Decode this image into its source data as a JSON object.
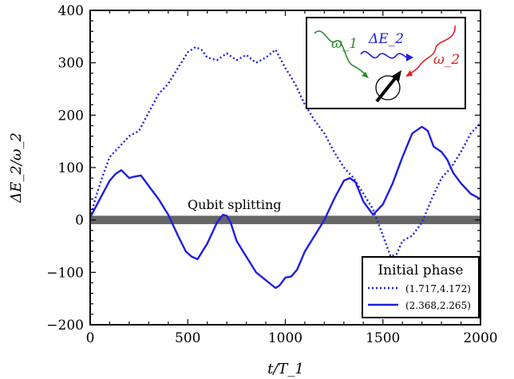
{
  "chart_data": {
    "type": "line",
    "xlabel": "t/T_1",
    "ylabel": "ΔE_2/ω_2",
    "xlim": [
      0,
      2000
    ],
    "ylim": [
      -200,
      400
    ],
    "xticks": [
      0,
      500,
      1000,
      1500,
      2000
    ],
    "xtick_labels": [
      "0",
      "500",
      "1000",
      "1500",
      "2000"
    ],
    "yticks": [
      -200,
      -100,
      0,
      100,
      200,
      300,
      400
    ],
    "ytick_labels": [
      "−200",
      "−100",
      "0",
      "100",
      "200",
      "300",
      "400"
    ],
    "grid": false,
    "band": {
      "label": "Qubit splitting",
      "y_range": [
        -8,
        8
      ],
      "color": "#666666"
    },
    "legend": {
      "title": "Initial phase",
      "position": "lower right"
    },
    "inset": {
      "labels": [
        "ω_1",
        "ΔE_2",
        "ω_2"
      ],
      "position": "upper right"
    },
    "series": [
      {
        "name": "(1.717,4.172)",
        "style": "dotted",
        "color": "#1f1fe0",
        "x": [
          0,
          30,
          60,
          100,
          150,
          200,
          250,
          300,
          350,
          400,
          450,
          500,
          540,
          570,
          600,
          650,
          700,
          750,
          800,
          850,
          900,
          950,
          1000,
          1050,
          1100,
          1150,
          1200,
          1250,
          1300,
          1350,
          1400,
          1450,
          1500,
          1540,
          1570,
          1600,
          1650,
          1700,
          1750,
          1800,
          1850,
          1900,
          1950,
          2000
        ],
        "y": [
          5,
          45,
          80,
          120,
          140,
          160,
          170,
          205,
          240,
          260,
          290,
          320,
          330,
          325,
          310,
          305,
          318,
          305,
          315,
          300,
          310,
          325,
          290,
          260,
          220,
          190,
          165,
          130,
          100,
          80,
          50,
          20,
          -30,
          -70,
          -65,
          -40,
          -30,
          -5,
          40,
          80,
          100,
          130,
          165,
          185
        ]
      },
      {
        "name": "(2.368,2.265)",
        "style": "solid",
        "color": "#1f1fe0",
        "x": [
          0,
          50,
          100,
          130,
          160,
          200,
          230,
          260,
          300,
          350,
          400,
          450,
          490,
          520,
          550,
          600,
          650,
          680,
          700,
          720,
          750,
          800,
          850,
          900,
          950,
          970,
          1000,
          1030,
          1060,
          1100,
          1150,
          1200,
          1250,
          1300,
          1330,
          1360,
          1400,
          1450,
          1500,
          1550,
          1600,
          1650,
          1700,
          1730,
          1760,
          1800,
          1830,
          1860,
          1900,
          1950,
          2000
        ],
        "y": [
          5,
          40,
          75,
          88,
          95,
          80,
          83,
          85,
          65,
          40,
          10,
          -30,
          -60,
          -70,
          -75,
          -45,
          -5,
          10,
          8,
          -5,
          -40,
          -70,
          -100,
          -115,
          -130,
          -125,
          -110,
          -108,
          -95,
          -60,
          -30,
          0,
          40,
          75,
          80,
          72,
          35,
          10,
          30,
          70,
          120,
          165,
          178,
          170,
          140,
          130,
          115,
          90,
          70,
          50,
          40
        ]
      }
    ]
  }
}
